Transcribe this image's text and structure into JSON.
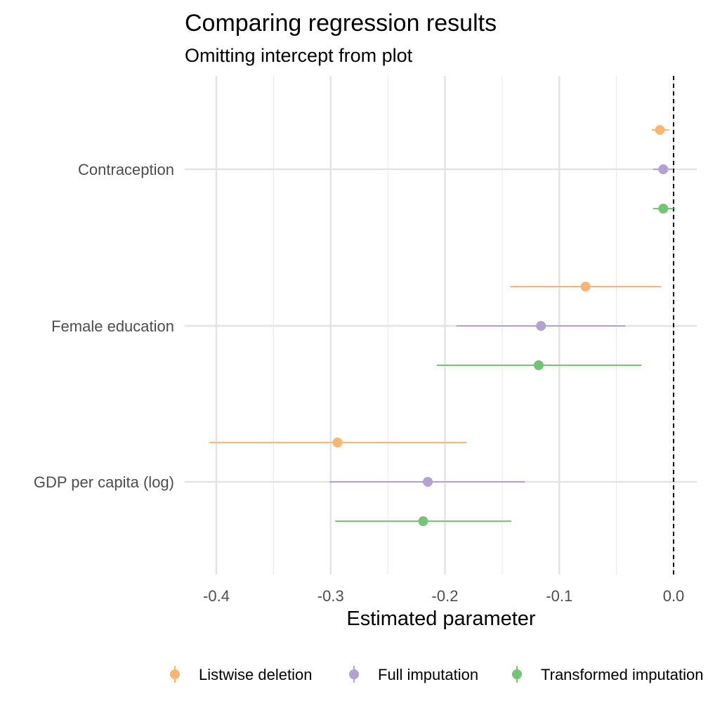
{
  "chart_data": {
    "type": "dot-and-whisker",
    "title": "Comparing regression results",
    "subtitle": "Omitting intercept from plot",
    "xlabel": "Estimated parameter",
    "ylabel": "",
    "xlim": [
      -0.42,
      0.02
    ],
    "x_ticks": [
      -0.4,
      -0.3,
      -0.2,
      -0.1,
      0.0
    ],
    "x_tick_labels": [
      "-0.4",
      "-0.3",
      "-0.2",
      "-0.1",
      "0.0"
    ],
    "reference_line": 0.0,
    "grid": true,
    "legend_position": "bottom",
    "categories": [
      "Contraception",
      "Female education",
      "GDP per capita (log)"
    ],
    "series": [
      {
        "name": "Listwise deletion",
        "color": "#fdb576",
        "estimates": [
          -0.012,
          -0.077,
          -0.294
        ],
        "lower": [
          -0.019,
          -0.143,
          -0.406
        ],
        "upper": [
          -0.004,
          -0.011,
          -0.181
        ]
      },
      {
        "name": "Full imputation",
        "color": "#b3a2cf",
        "estimates": [
          -0.009,
          -0.116,
          -0.215
        ],
        "lower": [
          -0.018,
          -0.19,
          -0.301
        ],
        "upper": [
          -0.001,
          -0.042,
          -0.13
        ]
      },
      {
        "name": "Transformed imputation",
        "color": "#75c375",
        "estimates": [
          -0.009,
          -0.118,
          -0.219
        ],
        "lower": [
          -0.018,
          -0.207,
          -0.296
        ],
        "upper": [
          0.0,
          -0.028,
          -0.142
        ]
      }
    ]
  }
}
